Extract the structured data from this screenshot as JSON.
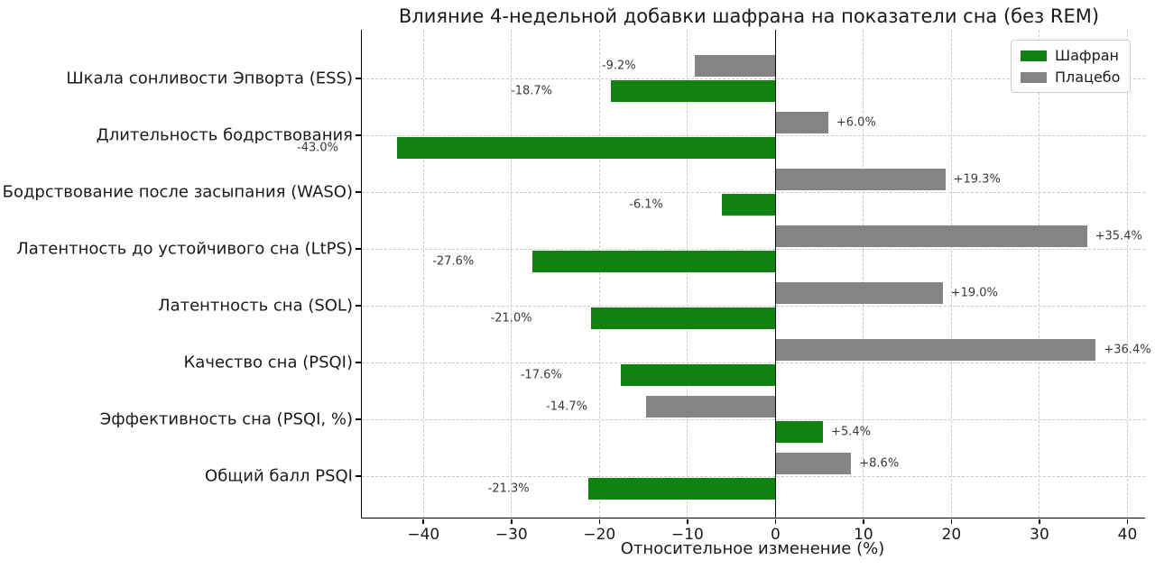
{
  "chart_data": {
    "type": "bar",
    "orientation": "horizontal",
    "title": "Влияние 4-недельной добавки шафрана на показатели сна (без REM)",
    "xlabel": "Относительное изменение (%)",
    "xlim": [
      -47,
      42
    ],
    "xticks": [
      -40,
      -30,
      -20,
      -10,
      0,
      10,
      20,
      30,
      40
    ],
    "xtick_labels": [
      "−40",
      "−30",
      "−20",
      "−10",
      "0",
      "10",
      "20",
      "30",
      "40"
    ],
    "grid": "dashed",
    "legend_position": "top-right",
    "categories": [
      "Шкала сонливости Эпворта (ESS)",
      "Длительность бодрствования",
      "Бодрствование после засыпания (WASO)",
      "Латентность до устойчивого сна (LtPS)",
      "Латентность сна (SOL)",
      "Качество сна (PSQI)",
      "Эффективность сна (PSQI, %)",
      "Общий балл PSQI"
    ],
    "series": [
      {
        "name": "Шафран",
        "color": "#0f820f",
        "values": [
          -18.7,
          -43.0,
          -6.1,
          -27.6,
          -21.0,
          -17.6,
          5.4,
          -21.3
        ],
        "labels": [
          "-18.7%",
          "-43.0%",
          "-6.1%",
          "-27.6%",
          "-21.0%",
          "-17.6%",
          "+5.4%",
          "-21.3%"
        ]
      },
      {
        "name": "Плацебо",
        "color": "#848484",
        "values": [
          -9.2,
          6.0,
          19.3,
          35.4,
          19.0,
          36.4,
          -14.7,
          8.6
        ],
        "labels": [
          "-9.2%",
          "+6.0%",
          "+19.3%",
          "+35.4%",
          "+19.0%",
          "+36.4%",
          "-14.7%",
          "+8.6%"
        ]
      }
    ]
  }
}
